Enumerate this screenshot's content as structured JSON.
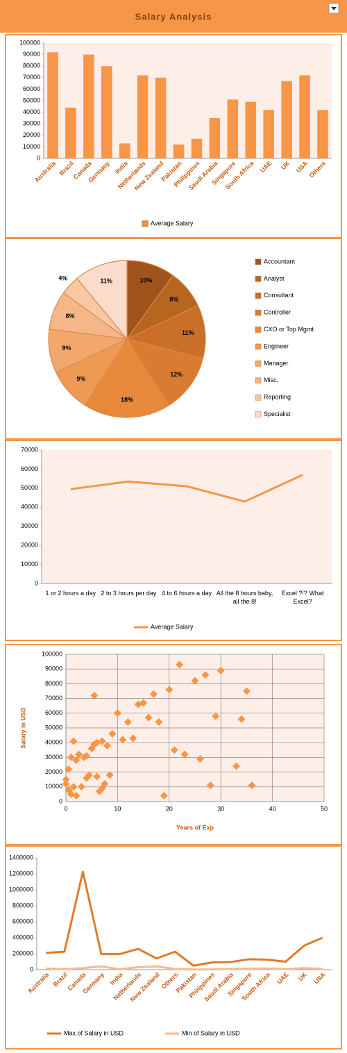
{
  "header": {
    "title": "Salary Analysis"
  },
  "chart_data": [
    {
      "type": "bar",
      "categories": [
        "Australia",
        "Brazil",
        "Canada",
        "Germany",
        "India",
        "Netherlands",
        "New Zealand",
        "Pakistan",
        "Philippines",
        "Saudi Arabia",
        "Singapore",
        "South Africa",
        "UAE",
        "UK",
        "USA",
        "Others"
      ],
      "series": [
        {
          "name": "Average Salary",
          "color": "#f79646",
          "values": [
            92000,
            44000,
            90000,
            80000,
            13000,
            72000,
            70000,
            12000,
            17000,
            35000,
            51000,
            49000,
            42000,
            67000,
            72000,
            42000
          ]
        }
      ],
      "ylim": [
        0,
        100000
      ],
      "yticks": [
        0,
        10000,
        20000,
        30000,
        40000,
        50000,
        60000,
        70000,
        80000,
        90000,
        100000
      ],
      "grid": false,
      "legend": "bottom",
      "plot_background": "#fdeee8"
    },
    {
      "type": "pie",
      "categories": [
        "Accountant",
        "Analyst",
        "Consultant",
        "Controller",
        "CXO or Top Mgmt.",
        "Engineer",
        "Manager",
        "Misc.",
        "Reporting",
        "Specialist"
      ],
      "values": [
        10,
        8,
        11,
        12,
        18,
        9,
        9,
        8,
        4,
        11
      ],
      "value_labels": [
        "10%",
        "8%",
        "11%",
        "12%",
        "18%",
        "9%",
        "9%",
        "8%",
        "4%",
        "11%"
      ],
      "colors": [
        "#a0541c",
        "#b8651f",
        "#c96f28",
        "#d97b30",
        "#e6893a",
        "#ee9a54",
        "#f2a86c",
        "#f5b788",
        "#f8c8a5",
        "#fbdccb"
      ],
      "legend": "right"
    },
    {
      "type": "line",
      "categories": [
        "1 or 2 hours a day",
        "2 to 3 hours per day",
        "4 to 6 hours a day",
        "All the 8 hours baby, all the 8!",
        "Excel ?!? What Excel?"
      ],
      "series": [
        {
          "name": "Average Salary",
          "color": "#f79646",
          "values": [
            49500,
            53500,
            51000,
            43000,
            57000
          ]
        }
      ],
      "ylim": [
        0,
        70000
      ],
      "yticks": [
        0,
        10000,
        20000,
        30000,
        40000,
        50000,
        60000,
        70000
      ],
      "grid": false,
      "legend": "bottom",
      "plot_background": "#fdeee8"
    },
    {
      "type": "scatter",
      "xlabel": "Years of Exp",
      "ylabel": "Salary in USD",
      "color": "#f79646",
      "x": [
        0,
        0,
        0.5,
        0.5,
        1,
        1,
        1.5,
        1.5,
        2,
        2,
        2.5,
        3,
        3.5,
        4,
        4,
        4.5,
        5,
        5.5,
        5.5,
        6,
        6,
        6.5,
        7,
        7,
        7.5,
        8,
        8.5,
        9,
        10,
        11,
        12,
        13,
        14,
        15,
        16,
        17,
        18,
        19,
        20,
        21,
        22,
        23,
        25,
        26,
        27,
        28,
        29,
        30,
        33,
        34,
        35,
        36
      ],
      "values": [
        15000,
        12000,
        8000,
        22000,
        5000,
        30000,
        41000,
        10000,
        4000,
        28000,
        32000,
        10000,
        30000,
        16000,
        31000,
        18000,
        36000,
        39000,
        72000,
        40000,
        17000,
        7000,
        41000,
        9000,
        12000,
        38000,
        18000,
        46000,
        60000,
        42000,
        54000,
        43000,
        66000,
        67000,
        57000,
        73000,
        54000,
        4000,
        76000,
        35000,
        93000,
        32000,
        82000,
        29000,
        86000,
        11000,
        58000,
        89000,
        24000,
        56000,
        75000,
        11000
      ],
      "xlim": [
        0,
        50
      ],
      "xticks": [
        0,
        10,
        20,
        30,
        40,
        50
      ],
      "ylim": [
        0,
        100000
      ],
      "yticks": [
        0,
        10000,
        20000,
        30000,
        40000,
        50000,
        60000,
        70000,
        80000,
        90000,
        100000
      ],
      "grid": true,
      "plot_background": "#fdeee8"
    },
    {
      "type": "line",
      "categories": [
        "Australia",
        "Brazil",
        "Canada",
        "Germany",
        "India",
        "Netherlands",
        "New Zealand",
        "Others",
        "Pakistan",
        "Philippines",
        "Saudi Arabia",
        "Singapore",
        "South Africa",
        "UAE",
        "UK",
        "USA"
      ],
      "series": [
        {
          "name": "Max of Salary in USD",
          "color": "#e07b2a",
          "values": [
            210000,
            225000,
            1225000,
            195000,
            195000,
            260000,
            140000,
            225000,
            50000,
            90000,
            95000,
            130000,
            125000,
            100000,
            300000,
            400000
          ]
        },
        {
          "name": "Min of Salary in USD",
          "color": "#f9b88e",
          "values": [
            15000,
            5000,
            20000,
            40000,
            5000,
            30000,
            40000,
            10000,
            2000,
            3000,
            10000,
            10000,
            15000,
            5000,
            20000,
            10000
          ]
        }
      ],
      "ylim": [
        0,
        1400000
      ],
      "yticks": [
        0,
        200000,
        400000,
        600000,
        800000,
        1000000,
        1200000,
        1400000
      ],
      "grid": false,
      "legend": "bottom",
      "rotate_labels": true
    }
  ]
}
